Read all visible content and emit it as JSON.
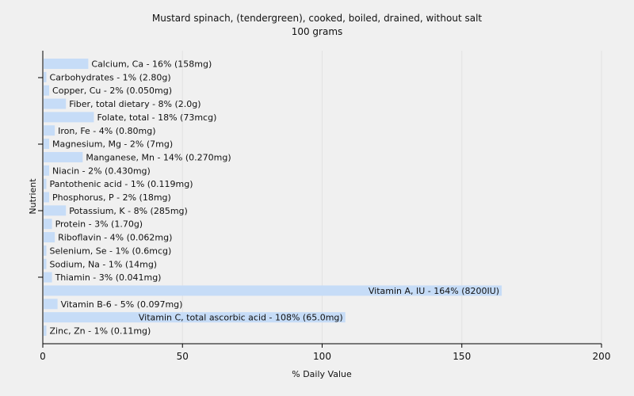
{
  "chart_data": {
    "type": "bar",
    "orientation": "horizontal",
    "title": "Mustard spinach, (tendergreen), cooked, boiled, drained, without salt",
    "subtitle": "100 grams",
    "xlabel": "% Daily Value",
    "ylabel": "Nutrient",
    "xlim": [
      0,
      200
    ],
    "xticks": [
      0,
      50,
      100,
      150,
      200
    ],
    "grid": true,
    "bar_color": "#c6dcf7",
    "categories": [
      "Calcium, Ca",
      "Carbohydrates",
      "Copper, Cu",
      "Fiber, total dietary",
      "Folate, total",
      "Iron, Fe",
      "Magnesium, Mg",
      "Manganese, Mn",
      "Niacin",
      "Pantothenic acid",
      "Phosphorus, P",
      "Potassium, K",
      "Protein",
      "Riboflavin",
      "Selenium, Se",
      "Sodium, Na",
      "Thiamin",
      "Vitamin A, IU",
      "Vitamin B-6",
      "Vitamin C, total ascorbic acid",
      "Zinc, Zn"
    ],
    "values": [
      16,
      1,
      2,
      8,
      18,
      4,
      2,
      14,
      2,
      1,
      2,
      8,
      3,
      4,
      1,
      1,
      3,
      164,
      5,
      108,
      1
    ],
    "labels": [
      "Calcium, Ca - 16% (158mg)",
      "Carbohydrates - 1% (2.80g)",
      "Copper, Cu - 2% (0.050mg)",
      "Fiber, total dietary - 8% (2.0g)",
      "Folate, total - 18% (73mcg)",
      "Iron, Fe - 4% (0.80mg)",
      "Magnesium, Mg - 2% (7mg)",
      "Manganese, Mn - 14% (0.270mg)",
      "Niacin - 2% (0.430mg)",
      "Pantothenic acid - 1% (0.119mg)",
      "Phosphorus, P - 2% (18mg)",
      "Potassium, K - 8% (285mg)",
      "Protein - 3% (1.70g)",
      "Riboflavin - 4% (0.062mg)",
      "Selenium, Se - 1% (0.6mcg)",
      "Sodium, Na - 1% (14mg)",
      "Thiamin - 3% (0.041mg)",
      "Vitamin A, IU - 164% (8200IU)",
      "Vitamin B-6 - 5% (0.097mg)",
      "Vitamin C, total ascorbic acid - 108% (65.0mg)",
      "Zinc, Zn - 1% (0.11mg)"
    ]
  }
}
